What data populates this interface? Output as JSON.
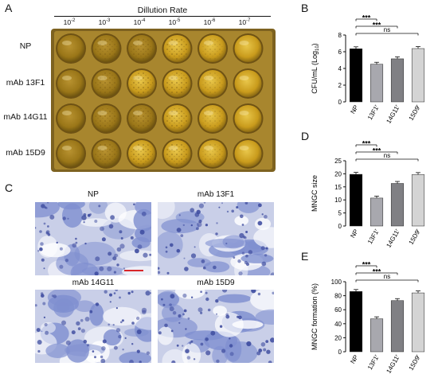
{
  "panels": {
    "A": "A",
    "B": "B",
    "C": "C",
    "D": "D",
    "E": "E"
  },
  "panelA": {
    "header": "Dillution Rate",
    "dilutions": [
      {
        "base": "10",
        "exp": "-2"
      },
      {
        "base": "10",
        "exp": "-3"
      },
      {
        "base": "10",
        "exp": "-4"
      },
      {
        "base": "10",
        "exp": "-5"
      },
      {
        "base": "10",
        "exp": "-6"
      },
      {
        "base": "10",
        "exp": "-7"
      }
    ],
    "rows": [
      "NP",
      "mAb 13F1",
      "mAb 14G11",
      "mAb 15D9"
    ]
  },
  "panelC": {
    "titles": [
      "NP",
      "mAb 13F1",
      "mAb 14G11",
      "mAb 15D9"
    ]
  },
  "colors": {
    "plate_frame": "#8a6a1c",
    "well_fill": "#d4a824",
    "stain": "#6a7dc8",
    "scale_bar": "#d8262a",
    "bar_NP": "#000000",
    "bar_13F1": "#a8a8ae",
    "bar_14G11": "#808084",
    "bar_15D9": "#d4d4d4"
  },
  "chart_data": [
    {
      "panel": "B",
      "type": "bar",
      "categories": [
        "NP",
        "13F1",
        "14G11",
        "15D9"
      ],
      "category_superscripts": [
        "",
        "r",
        "r",
        "r"
      ],
      "values": [
        6.35,
        4.5,
        5.15,
        6.38
      ],
      "ylabel_main": "CFU/mL (Log",
      "ylabel_sub": "10",
      "ylabel_end": ")",
      "yticks": [
        0,
        2,
        4,
        6,
        8
      ],
      "ylim": [
        0,
        8
      ],
      "significance": [
        {
          "pair": [
            "NP",
            "13F1"
          ],
          "label": "***"
        },
        {
          "pair": [
            "NP",
            "14G11"
          ],
          "label": "***"
        },
        {
          "pair": [
            "NP",
            "15D9"
          ],
          "label": "ns"
        }
      ]
    },
    {
      "panel": "D",
      "type": "bar",
      "categories": [
        "NP",
        "13F1",
        "14G11",
        "15D9"
      ],
      "category_superscripts": [
        "",
        "r",
        "r",
        "r"
      ],
      "values": [
        19.8,
        10.7,
        16.3,
        19.7
      ],
      "ylabel": "MNGC size",
      "yticks": [
        0,
        5,
        10,
        15,
        20,
        25
      ],
      "ylim": [
        0,
        25
      ],
      "significance": [
        {
          "pair": [
            "NP",
            "13F1"
          ],
          "label": "***"
        },
        {
          "pair": [
            "NP",
            "14G11"
          ],
          "label": "***"
        },
        {
          "pair": [
            "NP",
            "15D9"
          ],
          "label": "ns"
        }
      ]
    },
    {
      "panel": "E",
      "type": "bar",
      "categories": [
        "NP",
        "13F1",
        "14G11",
        "15D9"
      ],
      "category_superscripts": [
        "",
        "r",
        "r",
        "r"
      ],
      "values": [
        86,
        47,
        73,
        84
      ],
      "ylabel": "MNGC formation (%)",
      "yticks": [
        0,
        20,
        40,
        60,
        80,
        100
      ],
      "ylim": [
        0,
        100
      ],
      "significance": [
        {
          "pair": [
            "NP",
            "13F1"
          ],
          "label": "***"
        },
        {
          "pair": [
            "NP",
            "14G11"
          ],
          "label": "***"
        },
        {
          "pair": [
            "NP",
            "15D9"
          ],
          "label": "ns"
        }
      ]
    }
  ]
}
